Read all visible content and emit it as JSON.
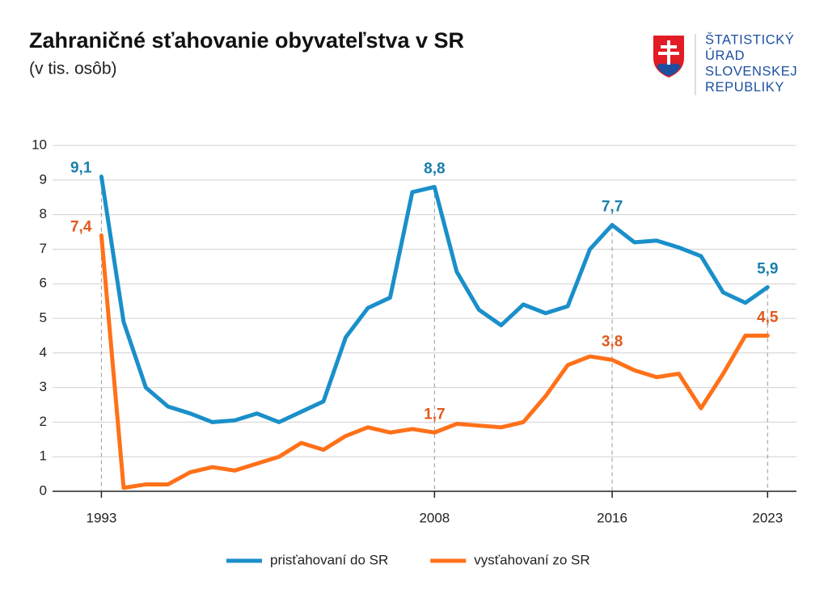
{
  "chart_data": {
    "type": "line",
    "title": "Zahraničné sťahovanie obyvateľstva v SR",
    "subtitle": "(v tis. osôb)",
    "x": [
      1993,
      1994,
      1995,
      1996,
      1997,
      1998,
      1999,
      2000,
      2001,
      2002,
      2003,
      2004,
      2005,
      2006,
      2007,
      2008,
      2009,
      2010,
      2011,
      2012,
      2013,
      2014,
      2015,
      2016,
      2017,
      2018,
      2019,
      2020,
      2021,
      2022,
      2023
    ],
    "series": [
      {
        "name": "prisťahovaní do SR",
        "color": "#1a8fc9",
        "values": [
          9.1,
          4.9,
          3.0,
          2.45,
          2.25,
          2.0,
          2.05,
          2.25,
          2.0,
          2.3,
          2.6,
          4.45,
          5.3,
          5.6,
          8.65,
          8.8,
          6.35,
          5.25,
          4.8,
          5.4,
          5.15,
          5.35,
          7.0,
          7.7,
          7.2,
          7.25,
          7.05,
          6.8,
          5.75,
          5.45,
          5.9
        ],
        "label_color": "#1a7fab",
        "value_labels": [
          "9,1",
          null,
          null,
          null,
          null,
          null,
          null,
          null,
          null,
          null,
          null,
          null,
          null,
          null,
          null,
          "8,8",
          null,
          null,
          null,
          null,
          null,
          null,
          null,
          "7,7",
          null,
          null,
          null,
          null,
          null,
          null,
          "5,9"
        ]
      },
      {
        "name": "vysťahovaní zo SR",
        "color": "#ff7119",
        "values": [
          7.4,
          0.1,
          0.2,
          0.2,
          0.55,
          0.7,
          0.6,
          0.8,
          1.0,
          1.4,
          1.2,
          1.6,
          1.85,
          1.7,
          1.8,
          1.7,
          1.95,
          1.9,
          1.85,
          2.0,
          2.75,
          3.65,
          3.9,
          3.8,
          3.5,
          3.3,
          3.4,
          2.4,
          3.4,
          4.5,
          4.5
        ],
        "label_color": "#e05a1c",
        "value_labels": [
          "7,4",
          null,
          null,
          null,
          null,
          null,
          null,
          null,
          null,
          null,
          null,
          null,
          null,
          null,
          null,
          "1,7",
          null,
          null,
          null,
          null,
          null,
          null,
          null,
          "3,8",
          null,
          null,
          null,
          null,
          null,
          null,
          "4,5"
        ]
      }
    ],
    "xlim": [
      1990.8,
      2024.3
    ],
    "xticks": [
      1993,
      2008,
      2016,
      2023
    ],
    "ylim": [
      0,
      10
    ],
    "yticks": [
      0,
      1,
      2,
      3,
      4,
      5,
      6,
      7,
      8,
      9,
      10
    ],
    "grid": true,
    "legend": "bottom"
  },
  "logo": {
    "lines": [
      "ŠTATISTICKÝ",
      "ÚRAD",
      "SLOVENSKEJ",
      "REPUBLIKY"
    ]
  }
}
